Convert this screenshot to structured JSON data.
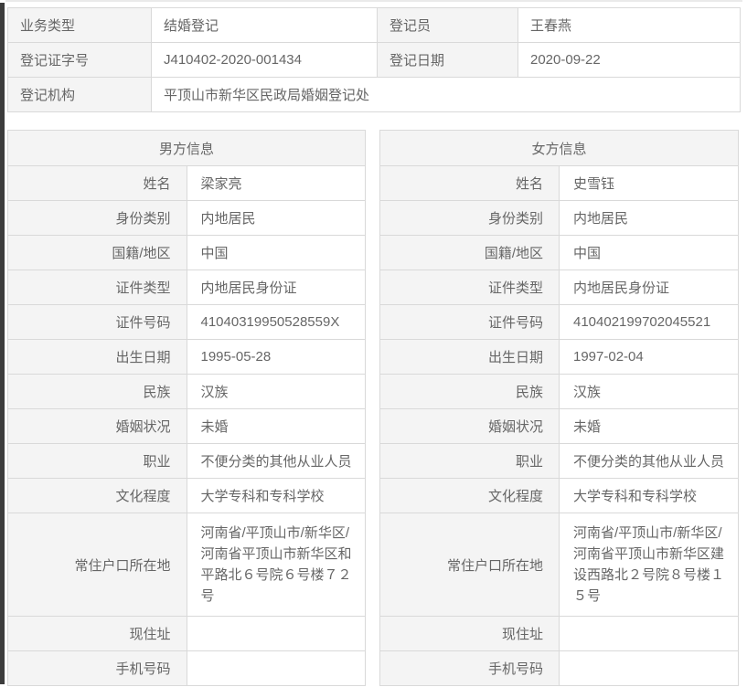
{
  "colors": {
    "label_bg": "#f4f4f4",
    "border": "#d9d9d9",
    "text": "#666666",
    "left_edge": "#3c3c3c"
  },
  "registration": {
    "rows": [
      {
        "label1": "业务类型",
        "value1": "结婚登记",
        "label2": "登记员",
        "value2": "王春燕"
      },
      {
        "label1": "登记证字号",
        "value1": "J410402-2020-001434",
        "label2": "登记日期",
        "value2": "2020-09-22"
      }
    ],
    "org": {
      "label": "登记机构",
      "value": "平顶山市新华区民政局婚姻登记处"
    }
  },
  "male": {
    "title": "男方信息",
    "fields": [
      {
        "label": "姓名",
        "value": "梁家亮"
      },
      {
        "label": "身份类别",
        "value": "内地居民"
      },
      {
        "label": "国籍/地区",
        "value": "中国"
      },
      {
        "label": "证件类型",
        "value": "内地居民身份证"
      },
      {
        "label": "证件号码",
        "value": "41040319950528559X"
      },
      {
        "label": "出生日期",
        "value": "1995-05-28"
      },
      {
        "label": "民族",
        "value": "汉族"
      },
      {
        "label": "婚姻状况",
        "value": "未婚"
      },
      {
        "label": "职业",
        "value": "不便分类的其他从业人员"
      },
      {
        "label": "文化程度",
        "value": "大学专科和专科学校"
      },
      {
        "label": "常住户口所在地",
        "value": "河南省/平顶山市/新华区/河南省平顶山市新华区和平路北６号院６号楼７２号"
      },
      {
        "label": "现住址",
        "value": ""
      },
      {
        "label": "手机号码",
        "value": ""
      }
    ]
  },
  "female": {
    "title": "女方信息",
    "fields": [
      {
        "label": "姓名",
        "value": "史雪钰"
      },
      {
        "label": "身份类别",
        "value": "内地居民"
      },
      {
        "label": "国籍/地区",
        "value": "中国"
      },
      {
        "label": "证件类型",
        "value": "内地居民身份证"
      },
      {
        "label": "证件号码",
        "value": "410402199702045521"
      },
      {
        "label": "出生日期",
        "value": "1997-02-04"
      },
      {
        "label": "民族",
        "value": "汉族"
      },
      {
        "label": "婚姻状况",
        "value": "未婚"
      },
      {
        "label": "职业",
        "value": "不便分类的其他从业人员"
      },
      {
        "label": "文化程度",
        "value": "大学专科和专科学校"
      },
      {
        "label": "常住户口所在地",
        "value": "河南省/平顶山市/新华区/河南省平顶山市新华区建设西路北２号院８号楼１５号"
      },
      {
        "label": "现住址",
        "value": ""
      },
      {
        "label": "手机号码",
        "value": ""
      }
    ]
  }
}
